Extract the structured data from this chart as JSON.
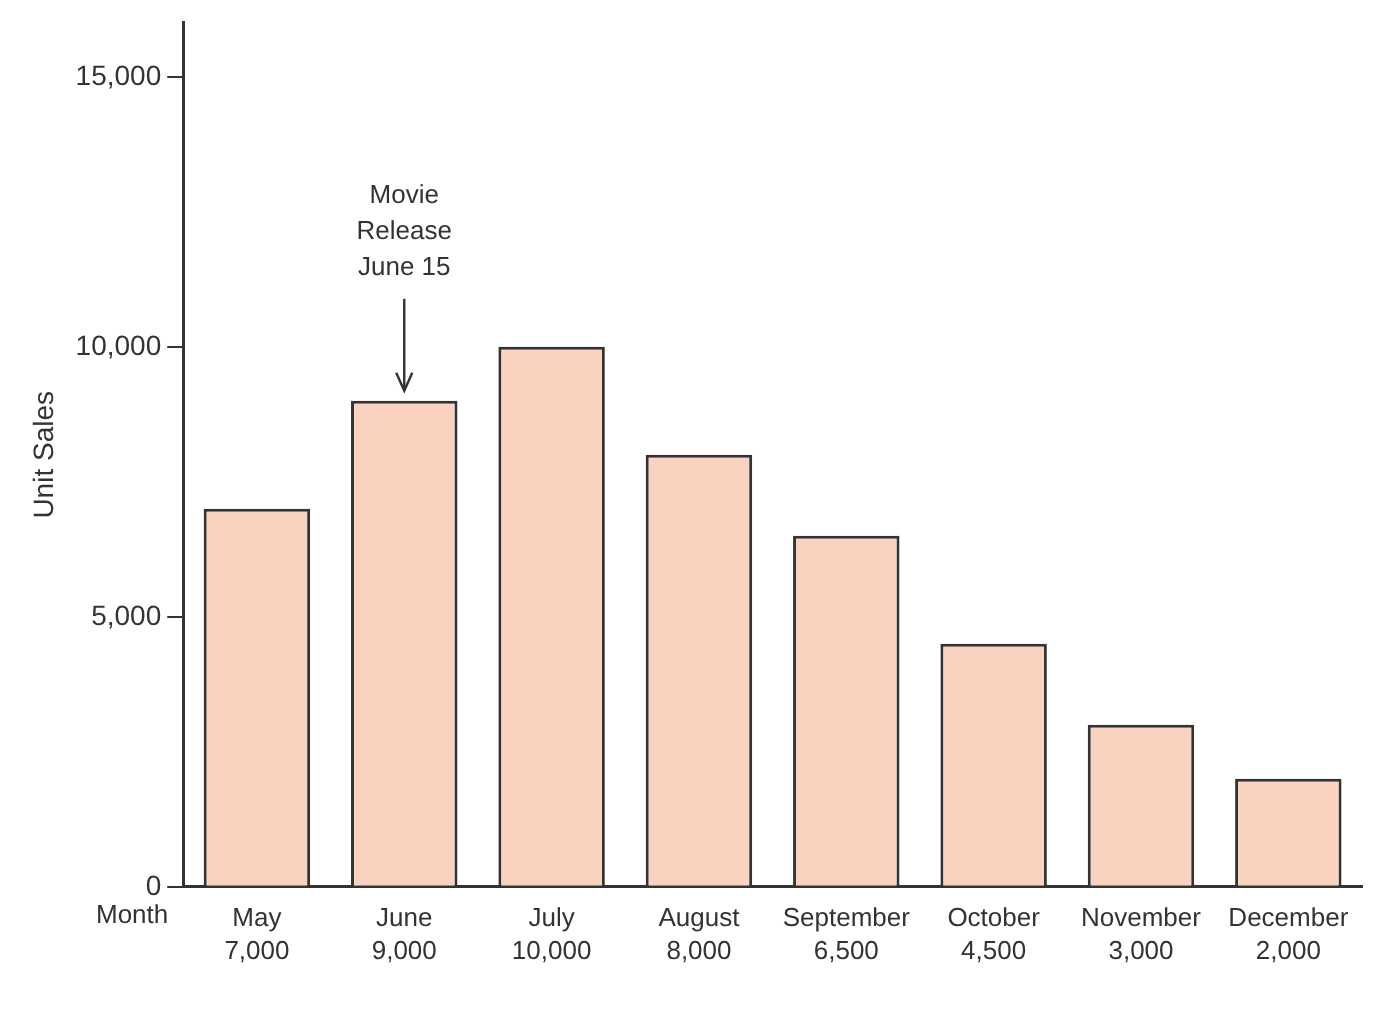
{
  "chart_data": {
    "type": "bar",
    "ylabel": "Unit Sales",
    "xlabel": "Month",
    "categories": [
      "May",
      "June",
      "July",
      "August",
      "September",
      "October",
      "November",
      "December"
    ],
    "values": [
      7000,
      9000,
      10000,
      8000,
      6500,
      4500,
      3000,
      2000
    ],
    "value_labels": [
      "7,000",
      "9,000",
      "10,000",
      "8,000",
      "6,500",
      "4,500",
      "3,000",
      "2,000"
    ],
    "color": "#f9d3c0",
    "grid": false,
    "legend": false,
    "ylim": [
      0,
      16000
    ],
    "yticks": [
      {
        "value": 0,
        "label": "0"
      },
      {
        "value": 5000,
        "label": "5,000"
      },
      {
        "value": 10000,
        "label": "10,000"
      },
      {
        "value": 15000,
        "label": "15,000"
      }
    ],
    "annotations": [
      {
        "text": "Movie\nRelease\nJune 15",
        "x": "June",
        "y": 9000
      }
    ]
  }
}
